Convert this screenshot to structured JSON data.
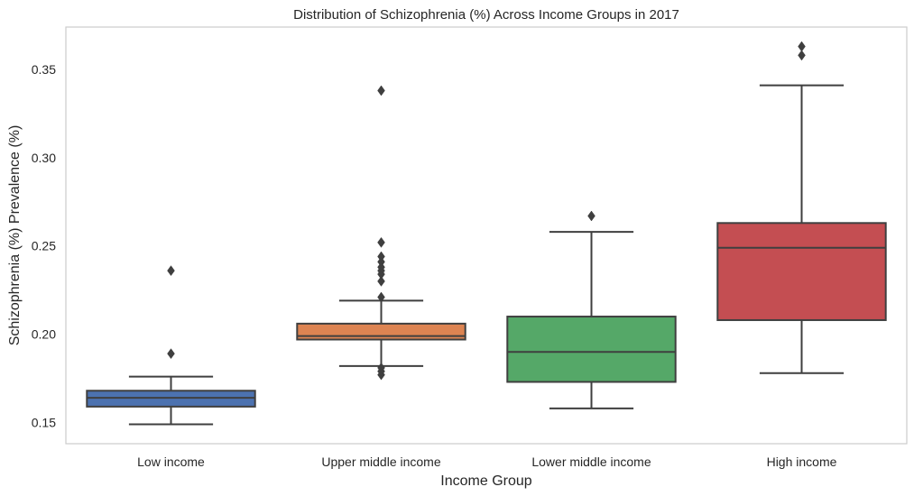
{
  "chart_data": {
    "type": "box",
    "title": "Distribution of Schizophrenia (%) Across Income Groups in 2017",
    "xlabel": "Income Group",
    "ylabel": "Schizophrenia (%) Prevalence (%)",
    "ylim": [
      0.138,
      0.374
    ],
    "yticks": [
      0.15,
      0.2,
      0.25,
      0.3,
      0.35
    ],
    "ytick_labels": [
      "0.15",
      "0.20",
      "0.25",
      "0.30",
      "0.35"
    ],
    "grid": false,
    "categories": [
      "Low income",
      "Upper middle income",
      "Lower middle income",
      "High income"
    ],
    "colors": [
      "#4c72b0",
      "#dd8452",
      "#55a868",
      "#c44e52"
    ],
    "edge_color": "#3f3f3f",
    "boxes": [
      {
        "category": "Low income",
        "whisker_low": 0.149,
        "q1": 0.159,
        "median": 0.164,
        "q3": 0.168,
        "whisker_high": 0.176,
        "outliers": [
          0.189,
          0.236
        ]
      },
      {
        "category": "Upper middle income",
        "whisker_low": 0.182,
        "q1": 0.197,
        "median": 0.199,
        "q3": 0.206,
        "whisker_high": 0.219,
        "outliers": [
          0.177,
          0.179,
          0.181,
          0.221,
          0.23,
          0.234,
          0.236,
          0.238,
          0.241,
          0.244,
          0.252,
          0.338
        ]
      },
      {
        "category": "Lower middle income",
        "whisker_low": 0.158,
        "q1": 0.173,
        "median": 0.19,
        "q3": 0.21,
        "whisker_high": 0.258,
        "outliers": [
          0.267
        ]
      },
      {
        "category": "High income",
        "whisker_low": 0.178,
        "q1": 0.208,
        "median": 0.249,
        "q3": 0.263,
        "whisker_high": 0.341,
        "outliers": [
          0.358,
          0.363
        ]
      }
    ]
  }
}
